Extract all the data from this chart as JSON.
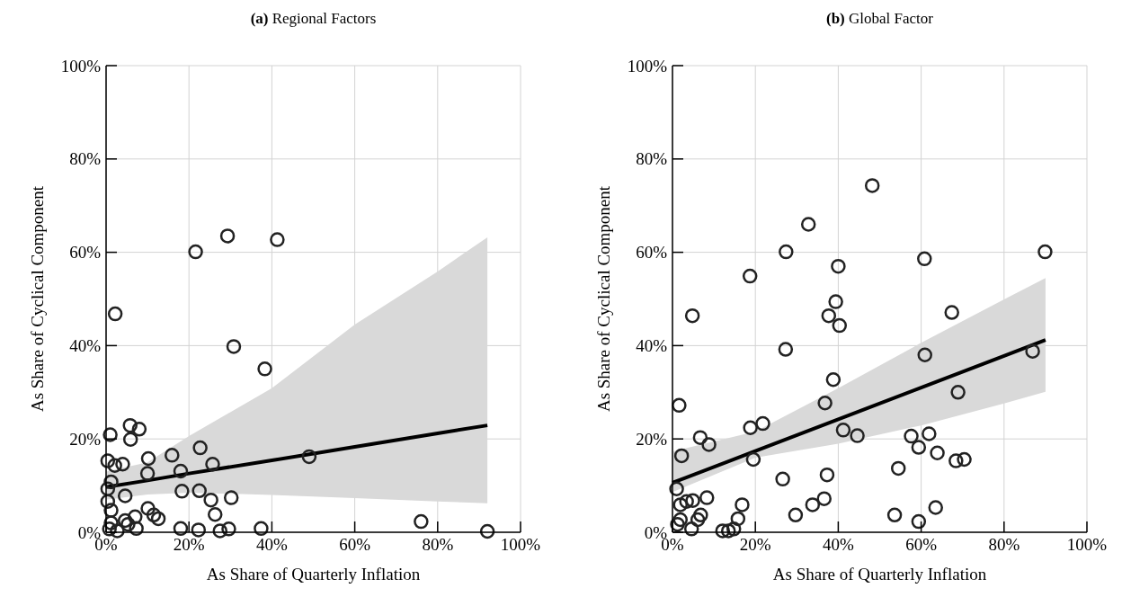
{
  "chart_data": [
    {
      "type": "scatter",
      "title": "(a) Regional Factors",
      "xlabel": "As Share of Quarterly Inflation",
      "ylabel": "As Share of Cyclical Component",
      "xlim": [
        0,
        100
      ],
      "ylim": [
        0,
        100
      ],
      "xticks": [
        {
          "value": 0,
          "label": "0%"
        },
        {
          "value": 20,
          "label": "20%"
        },
        {
          "value": 40,
          "label": "40%"
        },
        {
          "value": 60,
          "label": "60%"
        },
        {
          "value": 80,
          "label": "80%"
        },
        {
          "value": 100,
          "label": "100%"
        }
      ],
      "yticks": [
        {
          "value": 0,
          "label": "0%"
        },
        {
          "value": 20,
          "label": "20%"
        },
        {
          "value": 40,
          "label": "40%"
        },
        {
          "value": 60,
          "label": "60%"
        },
        {
          "value": 80,
          "label": "80%"
        },
        {
          "value": 100,
          "label": "100%"
        }
      ],
      "grid": true,
      "marker": "circle",
      "series": [
        {
          "type": "line",
          "color": "#000000",
          "x": [
            0,
            10,
            20,
            40,
            60,
            80,
            92
          ],
          "values": [
            9.7,
            11.1,
            12.6,
            15.4,
            18.3,
            21.2,
            22.9
          ],
          "lower": [
            7.0,
            8.1,
            8.5,
            8.0,
            7.3,
            6.6,
            6.2
          ],
          "upper": [
            13.0,
            15.0,
            20.6,
            30.9,
            44.5,
            55.9,
            63.2
          ],
          "marker": "none"
        },
        {
          "color": "#222222",
          "x": [
            21.6,
            29.3,
            41.3,
            2.2,
            30.8,
            38.3,
            49.0,
            76.0,
            92.0,
            5.8,
            8.0,
            1.0,
            5.9,
            15.9,
            22.7,
            10.2,
            25.7,
            10.0,
            18.0,
            4.0,
            2.1,
            0.4,
            1.2,
            18.3,
            22.5,
            25.3,
            30.2,
            4.6,
            26.3,
            10.1,
            11.5,
            12.6,
            7.0,
            4.6,
            18.0,
            22.3,
            27.5,
            29.6,
            37.4,
            7.3,
            1.2,
            1.2,
            0.4,
            0.4,
            0.8,
            2.7,
            5.3
          ],
          "values": [
            60.1,
            63.5,
            62.7,
            46.8,
            39.8,
            35.0,
            16.2,
            2.3,
            0.2,
            22.9,
            22.1,
            20.9,
            19.9,
            16.5,
            18.1,
            15.8,
            14.6,
            12.6,
            13.1,
            14.6,
            14.3,
            15.3,
            10.8,
            8.8,
            8.9,
            6.9,
            7.4,
            7.8,
            3.8,
            5.1,
            3.7,
            2.9,
            3.3,
            2.5,
            0.8,
            0.5,
            0.3,
            0.7,
            0.8,
            0.8,
            4.7,
            2.0,
            6.6,
            9.3,
            0.7,
            0.3,
            1.7
          ]
        }
      ]
    },
    {
      "type": "scatter",
      "title": "(b) Global Factor",
      "xlabel": "As Share of Quarterly Inflation",
      "ylabel": "As Share of Cyclical Component",
      "xlim": [
        0,
        100
      ],
      "ylim": [
        0,
        100
      ],
      "xticks": [
        {
          "value": 0,
          "label": "0%"
        },
        {
          "value": 20,
          "label": "20%"
        },
        {
          "value": 40,
          "label": "40%"
        },
        {
          "value": 60,
          "label": "60%"
        },
        {
          "value": 80,
          "label": "80%"
        },
        {
          "value": 100,
          "label": "100%"
        }
      ],
      "yticks": [
        {
          "value": 0,
          "label": "0%"
        },
        {
          "value": 20,
          "label": "20%"
        },
        {
          "value": 40,
          "label": "40%"
        },
        {
          "value": 60,
          "label": "60%"
        },
        {
          "value": 80,
          "label": "80%"
        },
        {
          "value": 100,
          "label": "100%"
        }
      ],
      "grid": true,
      "marker": "circle",
      "series": [
        {
          "type": "line",
          "color": "#000000",
          "x": [
            0,
            20,
            40,
            60,
            80,
            90
          ],
          "values": [
            10.6,
            17.4,
            24.2,
            31.0,
            37.8,
            41.2
          ],
          "lower": [
            8.6,
            16.0,
            19.0,
            22.9,
            27.6,
            30.1
          ],
          "upper": [
            17.3,
            21.6,
            30.9,
            40.6,
            49.9,
            54.5
          ],
          "marker": "none"
        },
        {
          "color": "#222222",
          "x": [
            48.2,
            32.8,
            27.4,
            89.9,
            40.0,
            60.8,
            18.7,
            39.4,
            4.8,
            37.7,
            67.4,
            40.3,
            27.3,
            60.9,
            86.9,
            38.8,
            68.9,
            1.6,
            36.8,
            21.8,
            18.8,
            41.2,
            44.6,
            6.7,
            57.6,
            61.9,
            8.8,
            59.4,
            63.9,
            68.4,
            70.4,
            2.2,
            19.5,
            54.5,
            37.3,
            26.6,
            1.0,
            8.3,
            36.6,
            33.8,
            16.8,
            63.5,
            29.7,
            53.6,
            59.4,
            15.8,
            4.9,
            3.4,
            1.9,
            6.8,
            6.1,
            1.9,
            1.2,
            4.6,
            12.1,
            13.5,
            14.8
          ],
          "values": [
            74.3,
            66.0,
            60.1,
            60.1,
            57.0,
            58.6,
            54.9,
            49.4,
            46.4,
            46.4,
            47.1,
            44.3,
            39.2,
            38.0,
            38.8,
            32.7,
            30.0,
            27.2,
            27.7,
            23.3,
            22.4,
            21.9,
            20.7,
            20.3,
            20.6,
            21.1,
            18.8,
            18.2,
            17.0,
            15.3,
            15.6,
            16.4,
            15.6,
            13.7,
            12.3,
            11.4,
            9.3,
            7.4,
            7.2,
            5.9,
            5.9,
            5.3,
            3.7,
            3.7,
            2.3,
            2.9,
            6.8,
            6.6,
            5.9,
            3.7,
            2.7,
            2.7,
            1.7,
            0.7,
            0.3,
            0.3,
            0.7
          ]
        }
      ]
    }
  ]
}
